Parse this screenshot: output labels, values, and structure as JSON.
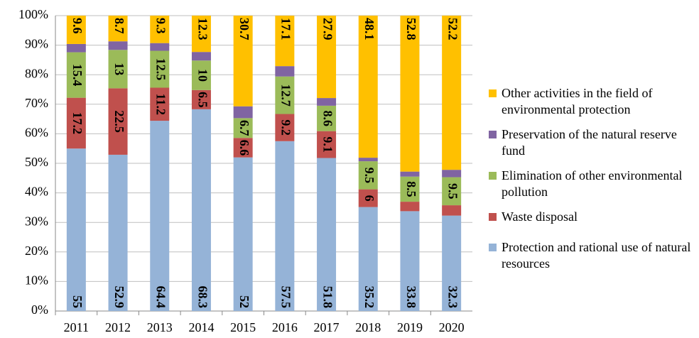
{
  "chart_data": {
    "type": "stacked_bar_100",
    "categories": [
      "2011",
      "2012",
      "2013",
      "2014",
      "2015",
      "2016",
      "2017",
      "2018",
      "2019",
      "2020"
    ],
    "series": [
      {
        "name": "Protection and rational use of natural resources",
        "color": "#95b3d7",
        "values": [
          55,
          52.9,
          64.4,
          68.3,
          52,
          57.5,
          51.8,
          35.2,
          33.8,
          32.3
        ],
        "value_labels": [
          "55",
          "52.9",
          "64.4",
          "68.3",
          "52",
          "57.5",
          "51.8",
          "35.2",
          "33.8",
          "32.3"
        ]
      },
      {
        "name": "Waste disposal",
        "color": "#c0504d",
        "values": [
          17.2,
          22.5,
          11.2,
          6.5,
          6.6,
          9.2,
          9.1,
          6,
          3.2,
          3.5
        ],
        "value_labels": [
          "17.2",
          "22.5",
          "11.2",
          "6.5",
          "6.6",
          "9.2",
          "9.1",
          "6",
          null,
          null
        ]
      },
      {
        "name": "Elimination of other environmental pollution",
        "color": "#9bbb59",
        "values": [
          15.4,
          13,
          12.5,
          10,
          6.7,
          12.7,
          8.6,
          9.5,
          8.5,
          9.5
        ],
        "value_labels": [
          "15.4",
          "13",
          "12.5",
          "10",
          "6.7",
          "12.7",
          "8.6",
          "9.5",
          "8.5",
          "9.5"
        ]
      },
      {
        "name": "Preservation of the natural reserve fund",
        "color": "#8064a2",
        "values": [
          2.8,
          2.9,
          2.6,
          2.9,
          4.0,
          3.5,
          2.6,
          1.2,
          1.7,
          2.5
        ]
      },
      {
        "name": "Other activities in the field of environmental protection",
        "color": "#ffc000",
        "values": [
          9.6,
          8.7,
          9.3,
          12.3,
          30.7,
          17.1,
          27.9,
          48.1,
          52.8,
          52.2
        ],
        "value_labels": [
          "9.6",
          "8.7",
          "9.3",
          "12.3",
          "30.7",
          "17.1",
          "27.9",
          "48.1",
          "52.8",
          "52.2"
        ]
      }
    ],
    "ylim": [
      0,
      100
    ],
    "yticks": [
      {
        "value": 0,
        "label": "0%"
      },
      {
        "value": 10,
        "label": "10%"
      },
      {
        "value": 20,
        "label": "20%"
      },
      {
        "value": 30,
        "label": "30%"
      },
      {
        "value": 40,
        "label": "40%"
      },
      {
        "value": 50,
        "label": "50%"
      },
      {
        "value": 60,
        "label": "60%"
      },
      {
        "value": 70,
        "label": "70%"
      },
      {
        "value": 80,
        "label": "80%"
      },
      {
        "value": 90,
        "label": "90%"
      },
      {
        "value": 100,
        "label": "100%"
      }
    ],
    "grid": true,
    "legend": "right"
  }
}
